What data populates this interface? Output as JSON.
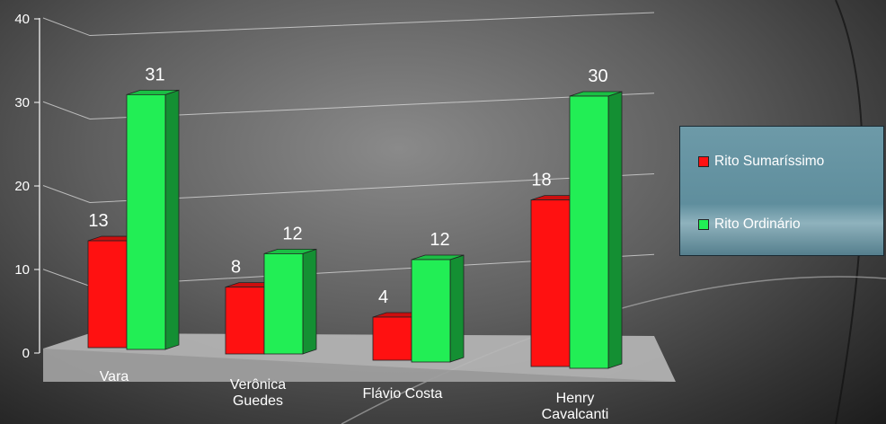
{
  "chart_data": {
    "type": "bar",
    "categories": [
      [
        "Vara"
      ],
      [
        "Verônica",
        "Guedes"
      ],
      [
        "Flávio Costa"
      ],
      [
        "Henry",
        "Cavalcanti"
      ]
    ],
    "series": [
      {
        "name": "Rito Sumaríssimo",
        "values": [
          13,
          8,
          4,
          18
        ],
        "color": "#ff1111"
      },
      {
        "name": "Rito Ordinário",
        "values": [
          31,
          12,
          12,
          30
        ],
        "color": "#22ee55"
      }
    ],
    "ylim": [
      0,
      40
    ],
    "yticks": [
      "0",
      "10",
      "20",
      "30",
      "40"
    ],
    "grid": true,
    "legend_position": "right",
    "data_labels": [
      [
        "13",
        "8",
        "4",
        "18"
      ],
      [
        "31",
        "12",
        "12",
        "30"
      ]
    ]
  }
}
